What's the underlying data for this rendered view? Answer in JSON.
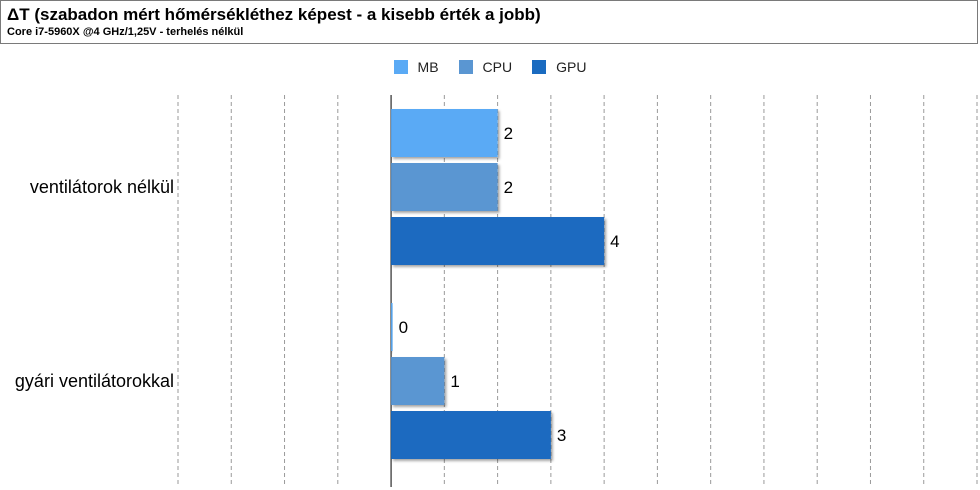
{
  "header": {
    "title": "ΔT (szabadon mért hőmérsékléthez képest - a kisebb érték a jobb)",
    "subtitle": "Core i7-5960X @4 GHz/1,25V - terhelés nélkül"
  },
  "chart_data": {
    "type": "bar",
    "orientation": "horizontal",
    "categories": [
      "ventilátorok nélkül",
      "gyári ventilátorokkal"
    ],
    "series": [
      {
        "name": "MB",
        "values": [
          2,
          0
        ],
        "color": "#5aaaf5"
      },
      {
        "name": "CPU",
        "values": [
          2,
          1
        ],
        "color": "#5a96d2"
      },
      {
        "name": "GPU",
        "values": [
          4,
          3
        ],
        "color": "#1a6bc0"
      }
    ],
    "xlim": [
      -4,
      11
    ],
    "grid": true,
    "legend_position": "top-center"
  }
}
